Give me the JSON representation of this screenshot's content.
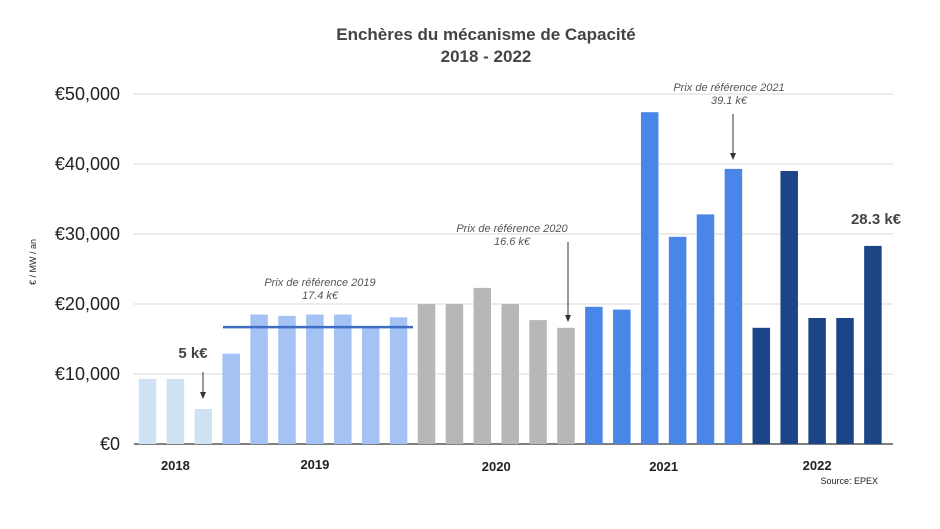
{
  "chart_data": {
    "type": "bar",
    "title": "Enchères du mécanisme de Capacité",
    "subtitle": "2018 - 2022",
    "ylabel": "€ / MW / an",
    "ylim": [
      0,
      50000
    ],
    "yticks": [
      {
        "value": 0,
        "label": "€0"
      },
      {
        "value": 10000,
        "label": "€10,000"
      },
      {
        "value": 20000,
        "label": "€20,000"
      },
      {
        "value": 30000,
        "label": "€30,000"
      },
      {
        "value": 40000,
        "label": "€40,000"
      },
      {
        "value": 50000,
        "label": "€50,000"
      }
    ],
    "grid": true,
    "groups": [
      {
        "label": "2018",
        "color": "#cfe2f3",
        "values": [
          9300,
          9300,
          5000
        ]
      },
      {
        "label": "2019",
        "color": "#a4c2f4",
        "values": [
          12900,
          18500,
          18300,
          18500,
          18500,
          16800,
          18100
        ]
      },
      {
        "label": "2020",
        "color": "#b7b7b7",
        "values": [
          20000,
          20000,
          22300,
          20000,
          17700,
          16600
        ]
      },
      {
        "label": "2021",
        "color": "#4a86e8",
        "values": [
          19600,
          19200,
          47400,
          29600,
          32800,
          39300
        ]
      },
      {
        "label": "2022",
        "color": "#1c4587",
        "values": [
          16600,
          39000,
          18000,
          18000,
          28300
        ]
      }
    ],
    "reference_line": {
      "value": 16700,
      "color": "#3d6ec4"
    },
    "annotations": [
      {
        "text": "5 k€",
        "style": "bold"
      },
      {
        "line1": "Prix de référence 2019",
        "line2": "17.4 k€"
      },
      {
        "line1": "Prix de référence 2020",
        "line2": "16.6 k€"
      },
      {
        "line1": "Prix de référence 2021",
        "line2": "39.1 k€"
      },
      {
        "text": "28.3 k€",
        "style": "bold"
      }
    ],
    "source": "Source: EPEX"
  }
}
